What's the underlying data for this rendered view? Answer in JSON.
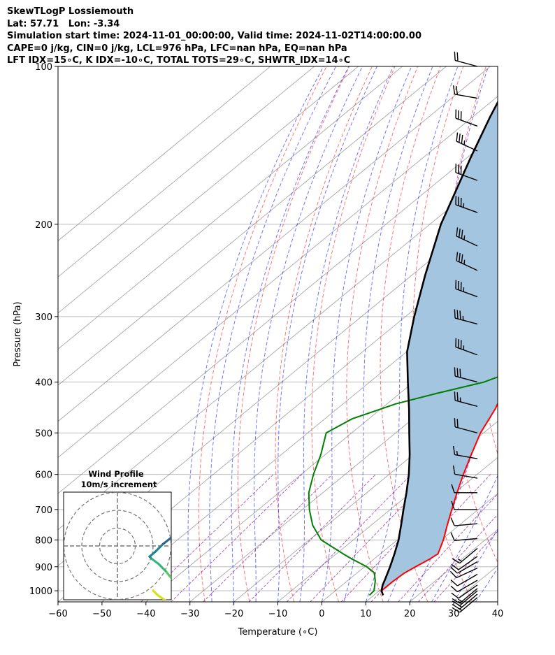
{
  "header": {
    "line1": "SkewTLogP Lossiemouth",
    "line2": "Lat: 57.71   Lon: -3.34",
    "line3": "Simulation start time: 2024-11-01_00:00:00, Valid time: 2024-11-02T14:00:00.00",
    "line4": "CAPE=0 j/kg, CIN=0 j/kg, LCL=976 hPa, LFC=nan hPa, EQ=nan hPa",
    "line5": "LFT IDX=15∘C, K IDX=-10∘C, TOTAL TOTS=29∘C, SHWTR_IDX=14∘C"
  },
  "colors": {
    "temperature": "#ff0000",
    "dewpoint": "#008000",
    "parcel": "#000000",
    "cape_fill": "#a3c5e0",
    "dry_adiabat": "#ff0000",
    "moist_adiabat": "#0000ff",
    "mixing_ratio": "#800080",
    "isotherm": "#808080"
  },
  "chart_data": {
    "type": "line",
    "chart_kind": "skew-T log-P",
    "xlabel": "Temperature (∘C)",
    "ylabel": "Pressure (hPa)",
    "x_ticks": [
      -60,
      -50,
      -40,
      -30,
      -20,
      -10,
      0,
      10,
      20,
      30,
      40
    ],
    "y_ticks": [
      100,
      200,
      300,
      400,
      500,
      600,
      700,
      800,
      900,
      1000
    ],
    "xlim": [
      -60,
      40
    ],
    "ylim": [
      1050,
      100
    ],
    "y_scale": "log",
    "grid": true,
    "series": [
      {
        "key": "temperature",
        "pressure": [
          1020,
          1000,
          960,
          925,
          900,
          870,
          850,
          800,
          750,
          700,
          650,
          600,
          550,
          500,
          450,
          400,
          350,
          300,
          250,
          200,
          185,
          170,
          160,
          150,
          140,
          130,
          120,
          110,
          100
        ],
        "values": [
          12.1,
          10.5,
          10.5,
          10.8,
          11.6,
          12.7,
          13.1,
          10.5,
          7.3,
          4.0,
          0.5,
          -3.1,
          -6.8,
          -10.7,
          -14.0,
          -18.6,
          -24.8,
          -31.6,
          -40.6,
          -51.0,
          -56.0,
          -61.8,
          -60.0,
          -62.0,
          -63.0,
          -67.0,
          -70.0,
          -74.0,
          -79.0
        ]
      },
      {
        "key": "dewpoint",
        "pressure": [
          1020,
          1000,
          960,
          925,
          900,
          870,
          850,
          800,
          750,
          700,
          650,
          600,
          550,
          500,
          470,
          440,
          420,
          400,
          380,
          360,
          340,
          320,
          300,
          280,
          260,
          240,
          220,
          200,
          190,
          180,
          170,
          160,
          150,
          140,
          130,
          120,
          110,
          100
        ],
        "values": [
          9.0,
          8.8,
          6.5,
          4.0,
          0.5,
          -5.0,
          -8.5,
          -17.3,
          -23.3,
          -28.4,
          -33.2,
          -37.2,
          -41.0,
          -45.8,
          -43.8,
          -38.0,
          -31.5,
          -24.0,
          -20.0,
          -19.0,
          -21.5,
          -25.5,
          -30.3,
          -37.5,
          -43.0,
          -47.5,
          -52.0,
          -57.0,
          -61.5,
          -68.3,
          -71.5,
          -72.0,
          -72.0,
          -71.0,
          -72.0,
          -76.0,
          -80.0,
          -85.0
        ]
      },
      {
        "key": "parcel",
        "pressure": [
          1020,
          1000,
          976,
          950,
          900,
          850,
          800,
          750,
          700,
          650,
          600,
          550,
          500,
          450,
          400,
          350,
          300,
          250,
          200,
          150,
          125,
          100
        ],
        "values": [
          12.1,
          10.5,
          9.2,
          8.1,
          5.8,
          3.2,
          0.3,
          -3.2,
          -7.0,
          -11.0,
          -15.5,
          -20.8,
          -26.9,
          -33.6,
          -41.3,
          -49.9,
          -58.0,
          -67.0,
          -77.5,
          -89.0,
          -96.0,
          -104.0
        ]
      }
    ],
    "wind_barbs": {
      "pressure": [
        1030,
        1015,
        1000,
        990,
        975,
        955,
        930,
        905,
        880,
        860,
        830,
        795,
        745,
        700,
        650,
        610,
        560,
        500,
        445,
        400,
        355,
        310,
        275,
        245,
        220,
        190,
        165,
        145,
        130,
        115,
        100
      ],
      "speed_kt": [
        13,
        13,
        13,
        13,
        12,
        12,
        12,
        12,
        12,
        12,
        13,
        11,
        10,
        10,
        10,
        12,
        15,
        22,
        27,
        30,
        35,
        35,
        37,
        37,
        37,
        37,
        37,
        37,
        32,
        22,
        22
      ],
      "direction_deg": [
        230,
        230,
        230,
        230,
        235,
        240,
        240,
        245,
        240,
        235,
        230,
        265,
        265,
        270,
        270,
        280,
        280,
        285,
        285,
        285,
        290,
        285,
        290,
        295,
        295,
        290,
        290,
        295,
        290,
        280,
        285
      ]
    },
    "wind_profile": {
      "title": "Wind Profile",
      "subtitle": "10m/s increment",
      "u": [
        4.0,
        4.5,
        5.5,
        6.5,
        7.2,
        7.0,
        6.2,
        5.4,
        4.6,
        3.8,
        3.6,
        4.3,
        5.1,
        6.0,
        6.5,
        6.9,
        7.4,
        7.6,
        7.2
      ],
      "v": [
        -5.0,
        -5.5,
        -6.2,
        -6.9,
        -7.4,
        -5.4,
        -3.8,
        -2.8,
        -2.0,
        -1.4,
        -1.2,
        -0.6,
        0.2,
        0.9,
        1.0,
        1.3,
        1.6,
        2.1,
        2.3
      ]
    }
  }
}
